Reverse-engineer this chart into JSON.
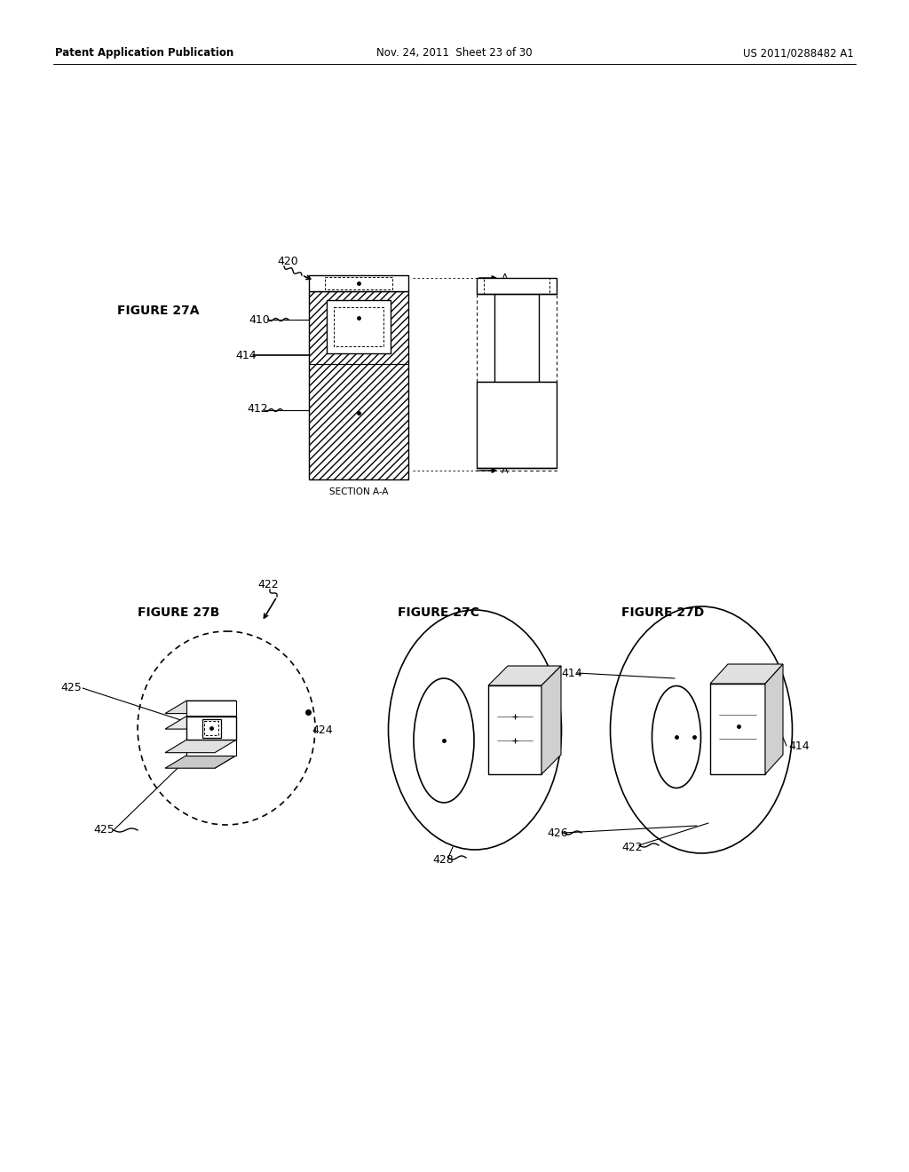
{
  "bg_color": "#ffffff",
  "header_left": "Patent Application Publication",
  "header_mid": "Nov. 24, 2011  Sheet 23 of 30",
  "header_right": "US 2011/0288482 A1",
  "fig27a_label": "FIGURE 27A",
  "fig27b_label": "FIGURE 27B",
  "fig27c_label": "FIGURE 27C",
  "fig27d_label": "FIGURE 27D",
  "section_label": "SECTION A-A",
  "lc": "#000000",
  "lw": 1.0
}
